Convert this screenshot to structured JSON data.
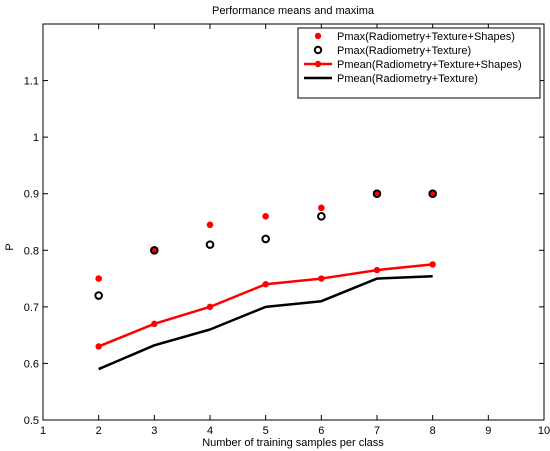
{
  "chart_data": {
    "type": "line",
    "title": "Performance means and maxima",
    "xlabel": "Number of training samples per class",
    "ylabel": "P",
    "xlim": [
      1,
      10
    ],
    "ylim": [
      0.5,
      1.2
    ],
    "xticks": [
      1,
      2,
      3,
      4,
      5,
      6,
      7,
      8,
      9,
      10
    ],
    "yticks": [
      0.5,
      0.6,
      0.7,
      0.8,
      0.9,
      1,
      1.1
    ],
    "ytick_labels": [
      "0.5",
      "0.6",
      "0.7",
      "0.8",
      "0.9",
      "1",
      "1.1"
    ],
    "grid": false,
    "legend_position": "top-right",
    "x": [
      2,
      3,
      4,
      5,
      6,
      7,
      8
    ],
    "series": [
      {
        "name": "Pmax(Radiometry+Texture+Shapes)",
        "style": "red-filled-dot",
        "color": "#ff0000",
        "values": [
          0.75,
          0.8,
          0.845,
          0.86,
          0.875,
          0.9,
          0.9
        ]
      },
      {
        "name": "Pmax(Radiometry+Texture)",
        "style": "black-open-circle",
        "color": "#000000",
        "values": [
          0.72,
          0.8,
          0.81,
          0.82,
          0.86,
          0.9,
          0.9
        ]
      },
      {
        "name": "Pmean(Radiometry+Texture+Shapes)",
        "style": "red-line-dots",
        "color": "#ff0000",
        "values": [
          0.63,
          0.67,
          0.7,
          0.74,
          0.75,
          0.765,
          0.775
        ]
      },
      {
        "name": "Pmean(Radiometry+Texture)",
        "style": "black-line",
        "color": "#000000",
        "values": [
          0.59,
          0.632,
          0.66,
          0.7,
          0.71,
          0.75,
          0.754
        ]
      }
    ]
  }
}
